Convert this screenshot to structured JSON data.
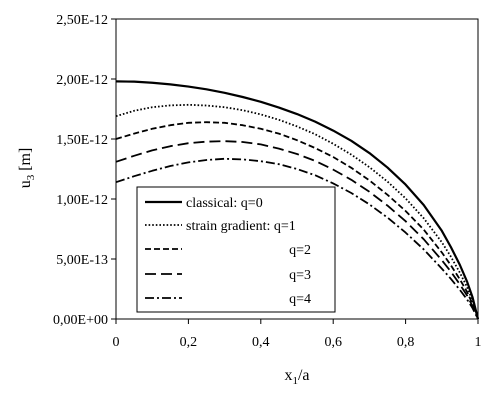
{
  "chart_data": {
    "type": "line",
    "xlabel": "x",
    "xlabel_sub": "1",
    "xlabel_tail": "/a",
    "ylabel": "u",
    "ylabel_sub": "3",
    "ylabel_tail": " [m]",
    "xlim": [
      0,
      1
    ],
    "ylim": [
      0,
      2.5e-12
    ],
    "x_ticks": [
      {
        "value": 0,
        "label": "0"
      },
      {
        "value": 0.2,
        "label": "0,2"
      },
      {
        "value": 0.4,
        "label": "0,4"
      },
      {
        "value": 0.6,
        "label": "0,6"
      },
      {
        "value": 0.8,
        "label": "0,8"
      },
      {
        "value": 1,
        "label": "1"
      }
    ],
    "y_ticks": [
      {
        "value": 0,
        "label": "0,00E+00"
      },
      {
        "value": 5e-13,
        "label": "5,00E-13"
      },
      {
        "value": 1e-12,
        "label": "1,00E-12"
      },
      {
        "value": 1.5e-12,
        "label": "1,50E-12"
      },
      {
        "value": 2e-12,
        "label": "2,00E-12"
      },
      {
        "value": 2.5e-12,
        "label": "2,50E-12"
      }
    ],
    "grid": false,
    "legend_position": "lower-left",
    "x": [
      0,
      0.05,
      0.1,
      0.15,
      0.2,
      0.25,
      0.3,
      0.35,
      0.4,
      0.45,
      0.5,
      0.55,
      0.6,
      0.65,
      0.7,
      0.75,
      0.8,
      0.85,
      0.9,
      0.925,
      0.95,
      0.97,
      0.985,
      1
    ],
    "series": [
      {
        "name": "classical: q=0",
        "dash": "solid",
        "values": [
          1.98e-12,
          1.978e-12,
          1.969e-12,
          1.955e-12,
          1.937e-12,
          1.914e-12,
          1.885e-12,
          1.85e-12,
          1.81e-12,
          1.762e-12,
          1.708e-12,
          1.645e-12,
          1.57e-12,
          1.485e-12,
          1.383e-12,
          1.262e-12,
          1.12e-12,
          9.5e-13,
          7.35e-13,
          6e-13,
          4.5e-13,
          3.1e-13,
          1.8e-13,
          0.0
        ]
      },
      {
        "name": "strain gradient: q=1",
        "dash": "dotted",
        "values": [
          1.69e-12,
          1.735e-12,
          1.765e-12,
          1.78e-12,
          1.785e-12,
          1.779e-12,
          1.765e-12,
          1.74e-12,
          1.705e-12,
          1.66e-12,
          1.605e-12,
          1.54e-12,
          1.46e-12,
          1.37e-12,
          1.265e-12,
          1.145e-12,
          1.005e-12,
          8.4e-13,
          6.4e-13,
          5.2e-13,
          3.85e-13,
          2.65e-13,
          1.5e-13,
          0.0
        ]
      },
      {
        "name": "q=2",
        "dash": "short-dash",
        "values": [
          1.5e-12,
          1.545e-12,
          1.585e-12,
          1.615e-12,
          1.635e-12,
          1.64e-12,
          1.635e-12,
          1.615e-12,
          1.585e-12,
          1.545e-12,
          1.49e-12,
          1.425e-12,
          1.35e-12,
          1.26e-12,
          1.155e-12,
          1.035e-12,
          9e-13,
          7.45e-13,
          5.55e-13,
          4.48e-13,
          3.3e-13,
          2.25e-13,
          1.25e-13,
          0.0
        ]
      },
      {
        "name": "q=3",
        "dash": "long-dash",
        "values": [
          1.31e-12,
          1.36e-12,
          1.405e-12,
          1.44e-12,
          1.465e-12,
          1.478e-12,
          1.482e-12,
          1.475e-12,
          1.455e-12,
          1.42e-12,
          1.375e-12,
          1.318e-12,
          1.245e-12,
          1.16e-12,
          1.06e-12,
          9.45e-13,
          8.15e-13,
          6.65e-13,
          4.9e-13,
          3.95e-13,
          2.88e-13,
          1.95e-13,
          1.08e-13,
          0.0
        ]
      },
      {
        "name": "q=4",
        "dash": "dash-dot",
        "values": [
          1.14e-12,
          1.19e-12,
          1.235e-12,
          1.275e-12,
          1.305e-12,
          1.325e-12,
          1.335e-12,
          1.33e-12,
          1.315e-12,
          1.29e-12,
          1.25e-12,
          1.198e-12,
          1.13e-12,
          1.05e-12,
          9.55e-13,
          8.45e-13,
          7.2e-13,
          5.8e-13,
          4.2e-13,
          3.35e-13,
          2.42e-13,
          1.62e-13,
          9e-14,
          0.0
        ]
      }
    ]
  }
}
